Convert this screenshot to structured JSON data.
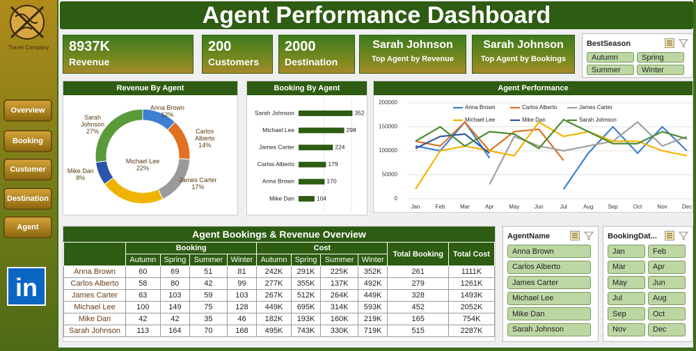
{
  "logo": {
    "text": "Travel Company"
  },
  "header": {
    "title": "Agent Performance Dashboard"
  },
  "sidebar": {
    "nav": [
      "Overview",
      "Booking",
      "Customer",
      "Destination",
      "Agent"
    ],
    "social": "in"
  },
  "kpis": [
    {
      "value": "8937K",
      "label": "Revenue"
    },
    {
      "value": "200",
      "label": "Customers"
    },
    {
      "value": "2000",
      "label": "Destination"
    },
    {
      "value": "Sarah Johnson",
      "label": "Top Agent by Revenue"
    },
    {
      "value": "Sarah Johnson",
      "label": "Top Agent by Bookings"
    }
  ],
  "slicers": {
    "season": {
      "title": "BestSeason",
      "items": [
        "Autumn",
        "Spring",
        "Summer",
        "Winter"
      ]
    },
    "agent": {
      "title": "AgentName",
      "items": [
        "Anna Brown",
        "Carlos Alberto",
        "James Carter",
        "Michael Lee",
        "Mike Dan",
        "Sarah Johnson"
      ]
    },
    "date": {
      "title": "BookingDat...",
      "items": [
        "Jan",
        "Feb",
        "Mar",
        "Apr",
        "May",
        "Jun",
        "Jul",
        "Aug",
        "Sep",
        "Oct",
        "Nov",
        "Dec"
      ]
    }
  },
  "chart_data": [
    {
      "type": "donut",
      "title": "Revenue By  Agent",
      "categories": [
        "Anna Brown",
        "Carlos Alberto",
        "James Carter",
        "Michael Lee",
        "Mike Dan",
        "Sarah Johnson"
      ],
      "values": [
        12,
        14,
        17,
        22,
        8,
        27
      ],
      "value_labels": [
        "12%",
        "14%",
        "17%",
        "22%",
        "8%",
        "27%"
      ],
      "colors": [
        "#3d7fd0",
        "#e07022",
        "#9a9a9a",
        "#f0b400",
        "#2c54a8",
        "#5a9a3a"
      ]
    },
    {
      "type": "hbar",
      "title": "Booking By  Agent",
      "categories": [
        "Sarah Johnson",
        "Michael Lee",
        "James Carter",
        "Carlos Alberto",
        "Anna Brown",
        "Mike Dan"
      ],
      "values": [
        352,
        298,
        224,
        179,
        170,
        104
      ],
      "color": "#2e5c12"
    },
    {
      "type": "line",
      "title": "Agent Performance",
      "categories": [
        "Jan",
        "Feb",
        "Mar",
        "Apr",
        "May",
        "Jun",
        "Jul",
        "Aug",
        "Sep",
        "Oct",
        "Nov",
        "Dec"
      ],
      "ylim": [
        0,
        200000
      ],
      "yticks": [
        0,
        50000,
        100000,
        150000,
        200000
      ],
      "grid": true,
      "series": [
        {
          "name": "Anna Brown",
          "color": "#3d7fd0",
          "values": [
            110000,
            100000,
            160000,
            85000,
            null,
            null,
            20000,
            95000,
            150000,
            95000,
            150000,
            100000
          ]
        },
        {
          "name": "Carlos Alberto",
          "color": "#e07022",
          "values": [
            120000,
            110000,
            160000,
            100000,
            140000,
            145000,
            80000,
            null,
            null,
            null,
            null,
            null
          ]
        },
        {
          "name": "James Carter",
          "color": "#a0a0a0",
          "values": [
            null,
            null,
            null,
            30000,
            130000,
            110000,
            100000,
            110000,
            120000,
            160000,
            110000,
            130000
          ]
        },
        {
          "name": "Michael Lee",
          "color": "#f0b400",
          "values": [
            20000,
            100000,
            110000,
            100000,
            90000,
            160000,
            130000,
            140000,
            120000,
            120000,
            100000,
            90000
          ]
        },
        {
          "name": "Mike Dan",
          "color": "#2c54a8",
          "values": [
            105000,
            130000,
            135000,
            95000,
            null,
            null,
            null,
            null,
            null,
            null,
            null,
            null
          ]
        },
        {
          "name": "Sarah Johnson",
          "color": "#4e8a2e",
          "values": [
            120000,
            150000,
            110000,
            140000,
            135000,
            105000,
            165000,
            140000,
            115000,
            115000,
            140000,
            125000
          ]
        }
      ]
    }
  ],
  "table": {
    "title": "Agent Bookings & Revenue Overview",
    "groups": [
      "Booking",
      "Cost",
      "Total Booking",
      "Total Cost"
    ],
    "subheaders": [
      "Autumn",
      "Spring",
      "Summer",
      "Winter",
      "Autumn",
      "Spring",
      "Summer",
      "Winter"
    ],
    "rows": [
      [
        "Anna Brown",
        "60",
        "69",
        "51",
        "81",
        "242K",
        "291K",
        "225K",
        "352K",
        "261",
        "1111K"
      ],
      [
        "Carlos Alberto",
        "58",
        "80",
        "42",
        "99",
        "277K",
        "355K",
        "137K",
        "492K",
        "279",
        "1261K"
      ],
      [
        "James Carter",
        "63",
        "103",
        "59",
        "103",
        "267K",
        "512K",
        "264K",
        "449K",
        "328",
        "1493K"
      ],
      [
        "Michael Lee",
        "100",
        "149",
        "75",
        "128",
        "449K",
        "695K",
        "314K",
        "593K",
        "452",
        "2052K"
      ],
      [
        "Mike Dan",
        "42",
        "42",
        "35",
        "46",
        "182K",
        "193K",
        "160K",
        "219K",
        "165",
        "754K"
      ],
      [
        "Sarah Johnson",
        "113",
        "164",
        "70",
        "168",
        "495K",
        "743K",
        "330K",
        "719K",
        "515",
        "2287K"
      ]
    ]
  }
}
